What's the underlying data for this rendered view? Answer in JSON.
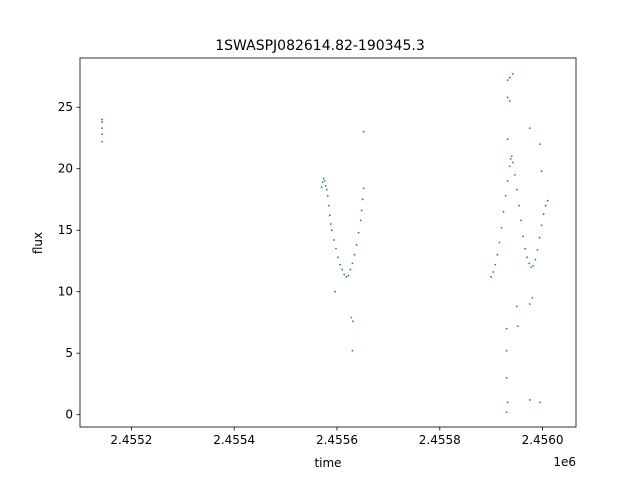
{
  "chart_data": {
    "type": "scatter",
    "title": "1SWASPJ082614.82-190345.3",
    "xlabel": "time",
    "ylabel": "flux",
    "x_offset_label": "1e6",
    "xlim": [
      2455100,
      2456065
    ],
    "ylim": [
      -1.0,
      29.0
    ],
    "x_ticks": [
      2455200,
      2455400,
      2455600,
      2455800,
      2456000
    ],
    "x_tick_labels": [
      "2.4552",
      "2.4554",
      "2.4556",
      "2.4558",
      "2.4560"
    ],
    "y_ticks": [
      0,
      5,
      10,
      15,
      20,
      25
    ],
    "y_tick_labels": [
      "0",
      "5",
      "10",
      "15",
      "20",
      "25"
    ],
    "grid": false,
    "marker_color": "#1f77b4",
    "series": [
      {
        "points": [
          [
            2455143,
            22.2
          ],
          [
            2455143,
            22.8
          ],
          [
            2455143,
            23.3
          ],
          [
            2455143,
            23.8
          ],
          [
            2455143,
            24.0
          ],
          [
            2455570,
            18.5
          ],
          [
            2455572,
            18.9
          ],
          [
            2455574,
            19.2
          ],
          [
            2455576,
            19.0
          ],
          [
            2455578,
            18.6
          ],
          [
            2455580,
            18.3
          ],
          [
            2455582,
            17.8
          ],
          [
            2455584,
            17.0
          ],
          [
            2455586,
            16.2
          ],
          [
            2455588,
            15.5
          ],
          [
            2455590,
            15.0
          ],
          [
            2455594,
            14.2
          ],
          [
            2455598,
            13.5
          ],
          [
            2455602,
            12.8
          ],
          [
            2455606,
            12.2
          ],
          [
            2455610,
            11.8
          ],
          [
            2455614,
            11.4
          ],
          [
            2455618,
            11.2
          ],
          [
            2455622,
            11.3
          ],
          [
            2455626,
            11.8
          ],
          [
            2455630,
            12.3
          ],
          [
            2455634,
            13.0
          ],
          [
            2455638,
            13.8
          ],
          [
            2455642,
            14.8
          ],
          [
            2455646,
            15.8
          ],
          [
            2455648,
            16.6
          ],
          [
            2455650,
            17.5
          ],
          [
            2455652,
            18.4
          ],
          [
            2455652,
            23.0
          ],
          [
            2455596,
            10.0
          ],
          [
            2455628,
            7.9
          ],
          [
            2455631,
            7.6
          ],
          [
            2455630,
            5.2
          ],
          [
            2455900,
            11.2
          ],
          [
            2455904,
            11.6
          ],
          [
            2455908,
            12.2
          ],
          [
            2455912,
            13.0
          ],
          [
            2455916,
            14.0
          ],
          [
            2455920,
            15.2
          ],
          [
            2455924,
            16.5
          ],
          [
            2455928,
            17.8
          ],
          [
            2455932,
            19.0
          ],
          [
            2455936,
            20.2
          ],
          [
            2455938,
            20.8
          ],
          [
            2455940,
            21.0
          ],
          [
            2455942,
            20.5
          ],
          [
            2455946,
            19.5
          ],
          [
            2455950,
            18.3
          ],
          [
            2455954,
            17.0
          ],
          [
            2455958,
            15.8
          ],
          [
            2455962,
            14.5
          ],
          [
            2455966,
            13.5
          ],
          [
            2455970,
            12.8
          ],
          [
            2455974,
            12.3
          ],
          [
            2455978,
            12.0
          ],
          [
            2455982,
            12.1
          ],
          [
            2455986,
            12.6
          ],
          [
            2455990,
            13.4
          ],
          [
            2455994,
            14.4
          ],
          [
            2455998,
            15.4
          ],
          [
            2456002,
            16.3
          ],
          [
            2456006,
            17.0
          ],
          [
            2456010,
            17.4
          ],
          [
            2455932,
            27.2
          ],
          [
            2455936,
            27.4
          ],
          [
            2455942,
            27.7
          ],
          [
            2455932,
            25.8
          ],
          [
            2455936,
            25.5
          ],
          [
            2455932,
            22.4
          ],
          [
            2455930,
            7.0
          ],
          [
            2455930,
            5.2
          ],
          [
            2455930,
            3.0
          ],
          [
            2455932,
            1.0
          ],
          [
            2455930,
            0.2
          ],
          [
            2455950,
            8.8
          ],
          [
            2455952,
            7.2
          ],
          [
            2455975,
            23.3
          ],
          [
            2455975,
            9.0
          ],
          [
            2455980,
            9.5
          ],
          [
            2455995,
            22.0
          ],
          [
            2455998,
            19.8
          ],
          [
            2455975,
            1.2
          ],
          [
            2455995,
            1.0
          ]
        ]
      }
    ]
  }
}
